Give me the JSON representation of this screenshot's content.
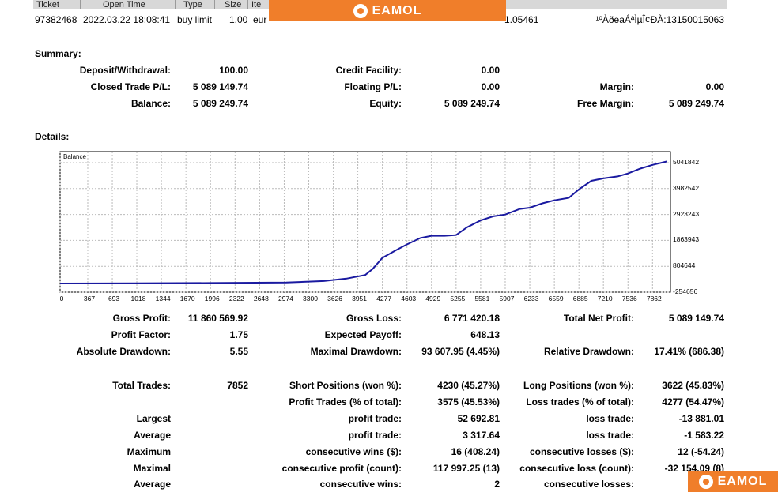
{
  "table_header": {
    "columns": [
      "Ticket",
      "Open Time",
      "Type",
      "Size",
      "Ite"
    ]
  },
  "trade_row": {
    "ticket": "97382468",
    "open_time": "2022.03.22 18:08:41",
    "type": "buy limit",
    "size": "1.00",
    "item": "eur",
    "price": "1.05461",
    "comment": "¹ºÀðeaÁªÌµÎ¢ÐÀ:13150015063"
  },
  "banner": {
    "brand": "EAMOL",
    "icon": "eamol-logo-icon",
    "color": "#f07e2a"
  },
  "badge": {
    "brand": "EAMOL",
    "icon": "eamol-logo-icon"
  },
  "summary": {
    "title": "Summary:",
    "deposit_label": "Deposit/Withdrawal:",
    "deposit_value": "100.00",
    "credit_label": "Credit Facility:",
    "credit_value": "0.00",
    "closed_label": "Closed Trade P/L:",
    "closed_value": "5 089 149.74",
    "floating_label": "Floating P/L:",
    "floating_value": "0.00",
    "margin_label": "Margin:",
    "margin_value": "0.00",
    "balance_label": "Balance:",
    "balance_value": "5 089 249.74",
    "equity_label": "Equity:",
    "equity_value": "5 089 249.74",
    "free_margin_label": "Free Margin:",
    "free_margin_value": "5 089 249.74"
  },
  "details": {
    "title": "Details:"
  },
  "chart_data": {
    "type": "line",
    "title": "Balance",
    "xlabel": "",
    "ylabel": "",
    "x_ticks": [
      "0",
      "367",
      "693",
      "1018",
      "1344",
      "1670",
      "1996",
      "2322",
      "2648",
      "2974",
      "3300",
      "3626",
      "3951",
      "4277",
      "4603",
      "4929",
      "5255",
      "5581",
      "5907",
      "6233",
      "6559",
      "6885",
      "7210",
      "7536",
      "7862"
    ],
    "y_ticks": [
      "5041842",
      "3982542",
      "2923243",
      "1863943",
      "804644",
      "-254656"
    ],
    "xlim": [
      0,
      8100
    ],
    "ylim": [
      -254656,
      5300000
    ],
    "grid": true,
    "series": [
      {
        "name": "Balance",
        "color": "#1a1aa0",
        "points": [
          [
            0,
            100
          ],
          [
            1000,
            110
          ],
          [
            2000,
            120
          ],
          [
            3000,
            140
          ],
          [
            3500,
            200
          ],
          [
            3800,
            300
          ],
          [
            4050,
            450
          ],
          [
            4150,
            700
          ],
          [
            4277,
            1150
          ],
          [
            4450,
            1450
          ],
          [
            4603,
            1700
          ],
          [
            4780,
            1960
          ],
          [
            4929,
            2050
          ],
          [
            5100,
            2050
          ],
          [
            5255,
            2080
          ],
          [
            5400,
            2400
          ],
          [
            5581,
            2680
          ],
          [
            5750,
            2850
          ],
          [
            5907,
            2920
          ],
          [
            6100,
            3150
          ],
          [
            6233,
            3200
          ],
          [
            6400,
            3380
          ],
          [
            6559,
            3500
          ],
          [
            6750,
            3600
          ],
          [
            6885,
            3950
          ],
          [
            7050,
            4300
          ],
          [
            7210,
            4400
          ],
          [
            7400,
            4480
          ],
          [
            7536,
            4600
          ],
          [
            7700,
            4800
          ],
          [
            7862,
            4950
          ],
          [
            8050,
            5089
          ]
        ],
        "points_unit": "thousands"
      }
    ]
  },
  "stats": {
    "gross_profit_label": "Gross Profit:",
    "gross_profit_value": "11 860 569.92",
    "gross_loss_label": "Gross Loss:",
    "gross_loss_value": "6 771 420.18",
    "net_profit_label": "Total Net Profit:",
    "net_profit_value": "5 089 149.74",
    "profit_factor_label": "Profit Factor:",
    "profit_factor_value": "1.75",
    "expected_payoff_label": "Expected Payoff:",
    "expected_payoff_value": "648.13",
    "abs_dd_label": "Absolute Drawdown:",
    "abs_dd_value": "5.55",
    "max_dd_label": "Maximal Drawdown:",
    "max_dd_value": "93 607.95 (4.45%)",
    "rel_dd_label": "Relative Drawdown:",
    "rel_dd_value": "17.41% (686.38)",
    "total_trades_label": "Total Trades:",
    "total_trades_value": "7852",
    "short_label": "Short Positions (won %):",
    "short_value": "4230 (45.27%)",
    "long_label": "Long Positions (won %):",
    "long_value": "3622 (45.83%)",
    "profit_trades_label": "Profit Trades (% of total):",
    "profit_trades_value": "3575 (45.53%)",
    "loss_trades_label": "Loss trades (% of total):",
    "loss_trades_value": "4277 (54.47%)",
    "largest_label": "Largest",
    "largest_profit_label": "profit trade:",
    "largest_profit_value": "52 692.81",
    "largest_loss_label": "loss trade:",
    "largest_loss_value": "-13 881.01",
    "average_label": "Average",
    "average_profit_label": "profit trade:",
    "average_profit_value": "3 317.64",
    "average_loss_label": "loss trade:",
    "average_loss_value": "-1 583.22",
    "maximum_label": "Maximum",
    "max_wins_label": "consecutive wins ($):",
    "max_wins_value": "16 (408.24)",
    "max_losses_label": "consecutive losses ($):",
    "max_losses_value": "12 (-54.24)",
    "maximal_label": "Maximal",
    "maximal_profit_label": "consecutive profit (count):",
    "maximal_profit_value": "117 997.25 (13)",
    "maximal_loss_label": "consecutive loss (count):",
    "maximal_loss_value": "-32 154.09 (8)",
    "average2_label": "Average",
    "avg_cons_wins_label": "consecutive wins:",
    "avg_cons_wins_value": "2",
    "avg_cons_losses_label": "consecutive losses:"
  }
}
